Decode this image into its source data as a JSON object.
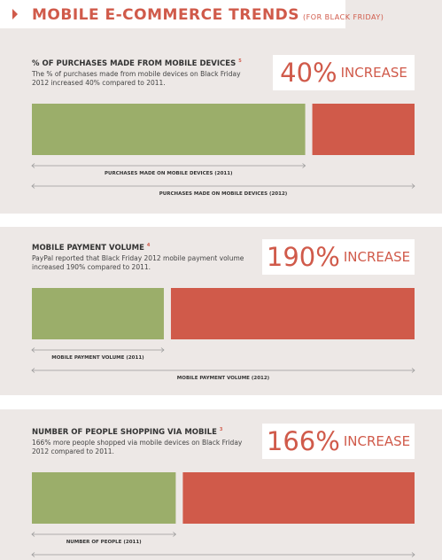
{
  "header": {
    "title": "MOBILE E-COMMERCE TRENDS",
    "subtitle": "(FOR BLACK FRIDAY)"
  },
  "sections": [
    {
      "title": "% OF PURCHASES MADE FROM MOBILE DEVICES",
      "note": "5",
      "description": "The % of purchases made from mobile devices on Black Friday 2012 increased 40% compared to 2011.",
      "increase": 40,
      "increase_label": "40%",
      "increase_text": "INCREASE",
      "label_2011": "PURCHASES MADE ON MOBILE DEVICES (2011)",
      "label_2012": "PURCHASES MADE ON MOBILE DEVICES (2012)"
    },
    {
      "title": "MOBILE PAYMENT VOLUME",
      "note": "4",
      "description": "PayPal reported that Black Friday 2012 mobile payment volume increased 190% compared to 2011.",
      "increase": 190,
      "increase_label": "190%",
      "increase_text": "INCREASE",
      "label_2011": "MOBILE PAYMENT VOLUME (2011)",
      "label_2012": "MOBILE PAYMENT VOLUME (2012)"
    },
    {
      "title": "NUMBER OF PEOPLE SHOPPING VIA MOBILE",
      "note": "3",
      "description": "166% more people shopped via mobile devices on Black Friday 2012 compared to 2011.",
      "increase": 166,
      "increase_label": "166%",
      "increase_text": "INCREASE",
      "label_2011": "NUMBER OF PEOPLE (2011)"
    }
  ]
}
